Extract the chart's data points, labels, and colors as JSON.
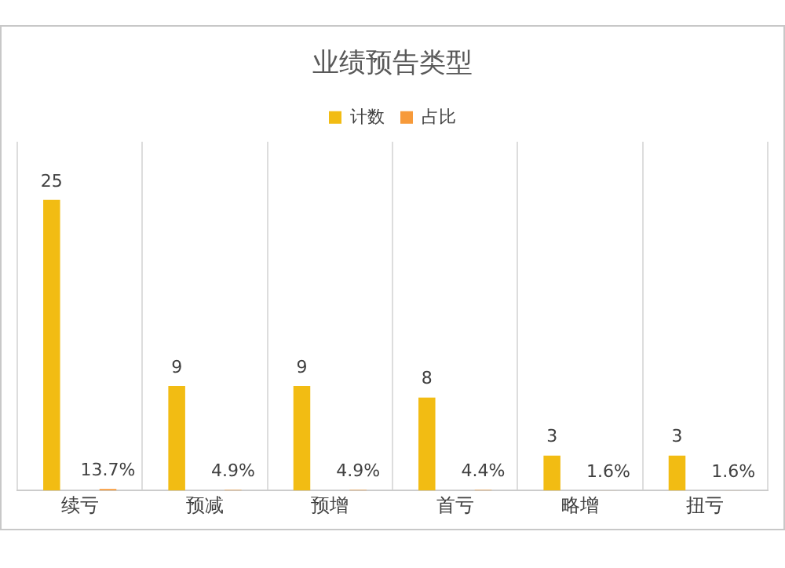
{
  "chart_data": {
    "type": "bar",
    "title": "业绩预告类型",
    "categories": [
      "续亏",
      "预减",
      "预增",
      "首亏",
      "略增",
      "扭亏"
    ],
    "series": [
      {
        "name": "计数",
        "color": "#f2bc13",
        "values": [
          25,
          9,
          9,
          8,
          3,
          3
        ],
        "value_labels": [
          "25",
          "9",
          "9",
          "8",
          "3",
          "3"
        ]
      },
      {
        "name": "占比",
        "color": "#f79a3a",
        "values": [
          0.137,
          0.049,
          0.049,
          0.044,
          0.016,
          0.016
        ],
        "value_labels": [
          "13.7%",
          "4.9%",
          "4.9%",
          "4.4%",
          "1.6%",
          "1.6%"
        ]
      }
    ],
    "ylim": [
      0,
      30
    ],
    "tick_labels": "x",
    "grid": "x",
    "legend": "top"
  }
}
